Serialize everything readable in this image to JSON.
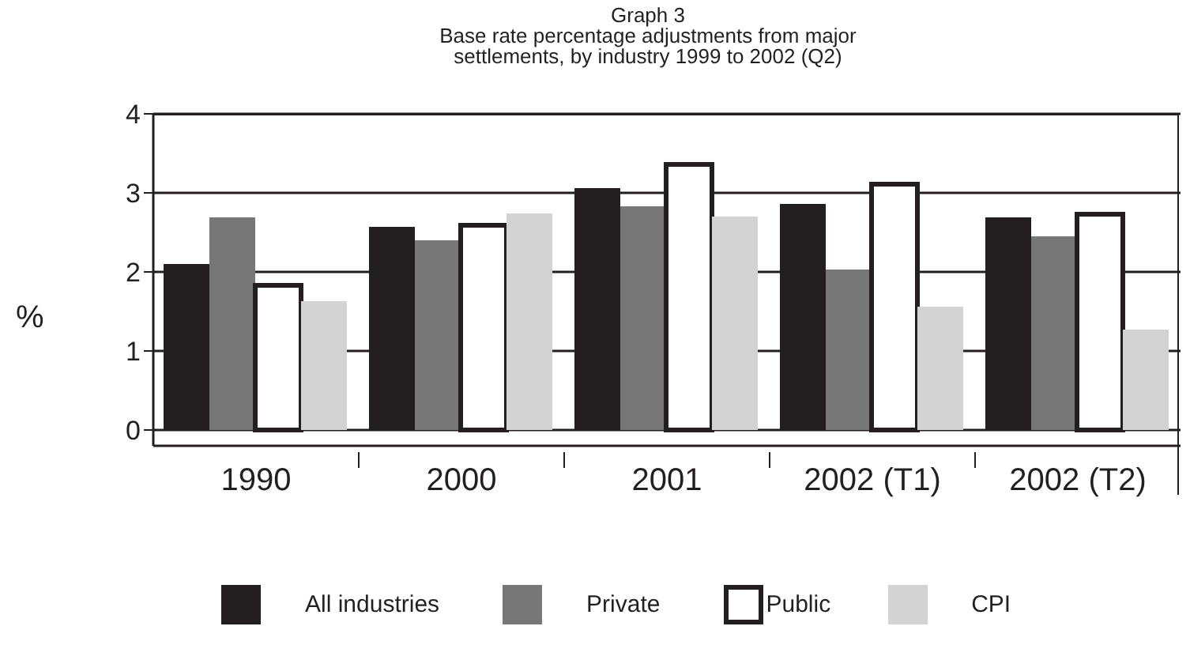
{
  "chart_data": {
    "type": "bar",
    "title": "Graph 3",
    "subtitle": "Base rate percentage adjustments from major settlements, by industry 1999 to 2002  (Q2)",
    "ylabel": "%",
    "categories": [
      "1990",
      "2000",
      "2001",
      "2002 (T1)",
      "2002 (T2)"
    ],
    "series": [
      {
        "name": "All industries",
        "color": "#231f20",
        "values": [
          2.1,
          2.57,
          3.06,
          2.86,
          2.69
        ]
      },
      {
        "name": "Private",
        "color": "#777777",
        "values": [
          2.69,
          2.4,
          2.83,
          2.03,
          2.45
        ]
      },
      {
        "name": "Public",
        "color": "#ffffff",
        "values": [
          1.83,
          2.59,
          3.36,
          3.11,
          2.73
        ]
      },
      {
        "name": "CPI",
        "color": "#d3d3d3",
        "values": [
          1.63,
          2.74,
          2.7,
          1.56,
          1.27
        ]
      }
    ],
    "ylim": [
      -0.2,
      4
    ],
    "yticks": [
      0,
      1,
      2,
      3,
      4
    ],
    "grid": "y",
    "legend": "bottom"
  }
}
